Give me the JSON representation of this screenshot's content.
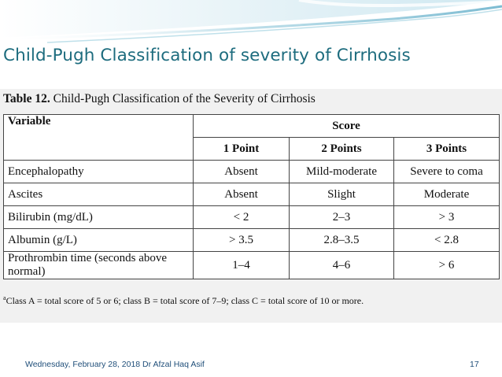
{
  "slide": {
    "title": "Child-Pugh Classification of severity of Cirrhosis",
    "footer_date": "Wednesday, February 28, 2018 Dr Afzal Haq Asif",
    "page_number": "17",
    "theme_colors": {
      "title": "#1d6c7e",
      "footer": "#1f4e79",
      "banner_light": "#e3f1f6",
      "banner_mid": "#9fcfdf"
    }
  },
  "table": {
    "caption_bold": "Table 12.",
    "caption_rest": "Child-Pugh Classification of the Severity of Cirrhosis",
    "header_variable": "Variable",
    "header_score": "Score",
    "point_headers": [
      "1 Point",
      "2 Points",
      "3 Points"
    ],
    "rows": [
      {
        "variable": "Encephalopathy",
        "cells": [
          "Absent",
          "Mild-moderate",
          "Severe to coma"
        ]
      },
      {
        "variable": "Ascites",
        "cells": [
          "Absent",
          "Slight",
          "Moderate"
        ]
      },
      {
        "variable": "Bilirubin (mg/dL)",
        "cells": [
          "< 2",
          "2–3",
          "> 3"
        ]
      },
      {
        "variable": "Albumin (g/L)",
        "cells": [
          "> 3.5",
          "2.8–3.5",
          "< 2.8"
        ]
      },
      {
        "variable": "Prothrombin time (seconds above normal)",
        "cells": [
          "1–4",
          "4–6",
          "> 6"
        ]
      }
    ],
    "footnote_marker": "a",
    "footnote": "Class A = total score of 5 or 6; class B = total score of 7–9; class C = total score of 10 or more."
  }
}
